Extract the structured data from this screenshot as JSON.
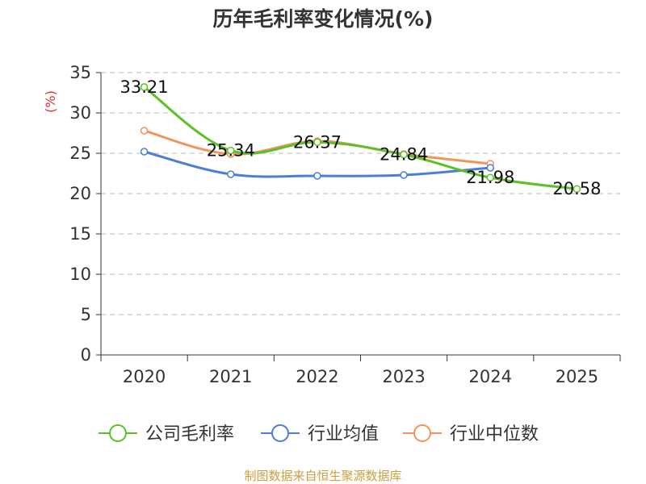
{
  "chart_data": {
    "type": "line",
    "title": "历年毛利率变化情况(%)",
    "ylabel": "(%)",
    "xlabel": "",
    "categories": [
      "2020",
      "2021",
      "2022",
      "2023",
      "2024",
      "2025"
    ],
    "ylim": [
      0,
      35
    ],
    "yticks": [
      0,
      5,
      10,
      15,
      20,
      25,
      30,
      35
    ],
    "grid": true,
    "legend_position": "bottom",
    "series": [
      {
        "name": "公司毛利率",
        "color": "#5cc124",
        "labeled": true,
        "values": [
          33.21,
          25.34,
          26.37,
          24.84,
          21.98,
          20.58
        ]
      },
      {
        "name": "行业均值",
        "color": "#4b7fd4",
        "labeled": false,
        "values": [
          25.2,
          22.4,
          22.2,
          22.3,
          23.2,
          null
        ]
      },
      {
        "name": "行业中位数",
        "color": "#f29459",
        "labeled": false,
        "values": [
          27.8,
          24.9,
          26.5,
          24.9,
          23.7,
          null
        ]
      }
    ]
  },
  "footer": {
    "source": "制图数据来自恒生聚源数据库"
  }
}
